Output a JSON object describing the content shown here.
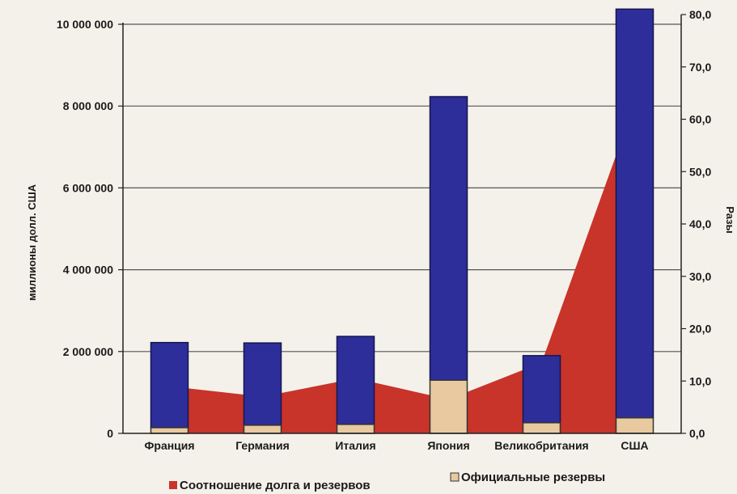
{
  "chart_data": {
    "type": "bar",
    "categories": [
      "Франция",
      "Германия",
      "Италия",
      "Япония",
      "Великобритания",
      "США"
    ],
    "series": [
      {
        "name": "Официальные резервы",
        "type": "bar",
        "axis": "left",
        "values": [
          140000,
          200000,
          220000,
          1300000,
          260000,
          380000
        ],
        "color": "#e8c9a0"
      },
      {
        "type": "bar",
        "axis": "left",
        "values": [
          2080000,
          2010000,
          2150000,
          6930000,
          1640000,
          9990000
        ],
        "color": "#2e2e9a"
      },
      {
        "name": "Соотношение долга и резервов",
        "type": "area",
        "axis": "right",
        "values": [
          9.0,
          7.0,
          10.5,
          6.5,
          13.5,
          63.0
        ],
        "color": "#c8332a"
      }
    ],
    "ylabel": "миллионы долл. США",
    "ylabel_right": "Разы",
    "ylim": [
      0,
      10000000
    ],
    "ylim_right": [
      0,
      80
    ],
    "yticks": [
      "0",
      "2 000 000",
      "4 000 000",
      "6 000 000",
      "8 000 000",
      "10 000 000"
    ],
    "yticks_right": [
      "0,0",
      "10,0",
      "20,0",
      "30,0",
      "40,0",
      "50,0",
      "60,0",
      "70,0",
      "80,0"
    ],
    "grid": true,
    "legend_position": "bottom",
    "background_color": "#f4f1ea"
  }
}
